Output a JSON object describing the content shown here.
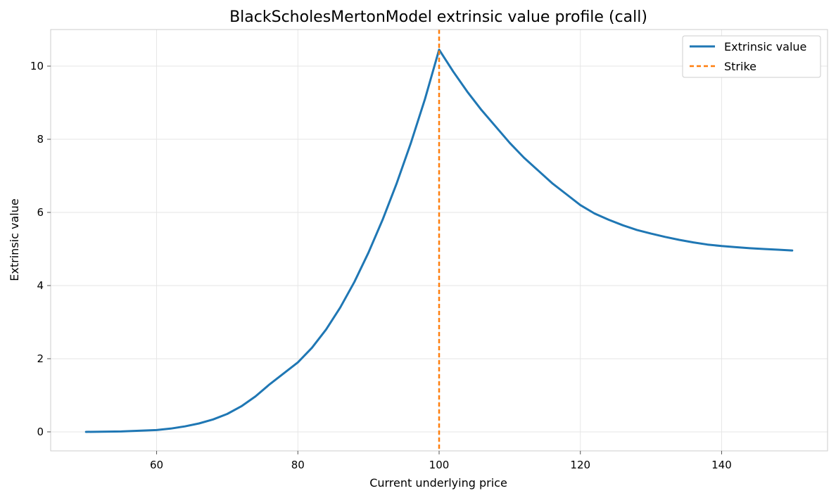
{
  "chart_data": {
    "type": "line",
    "title": "BlackScholesMertonModel extrinsic value profile (call)",
    "xlabel": "Current underlying price",
    "ylabel": "Extrinsic value",
    "xlim": [
      45,
      155
    ],
    "ylim": [
      -0.52,
      11.0
    ],
    "x_ticks": [
      60,
      80,
      100,
      120,
      140
    ],
    "y_ticks": [
      0,
      2,
      4,
      6,
      8,
      10
    ],
    "grid": true,
    "legend_position": "top-right",
    "series": [
      {
        "name": "Extrinsic value",
        "color": "#1f77b4",
        "style": "solid",
        "x": [
          50,
          55,
          60,
          62,
          64,
          66,
          68,
          70,
          72,
          74,
          76,
          78,
          80,
          82,
          84,
          86,
          88,
          90,
          92,
          94,
          96,
          98,
          100,
          102,
          104,
          106,
          108,
          110,
          112,
          114,
          116,
          118,
          120,
          122,
          124,
          126,
          128,
          130,
          132,
          134,
          136,
          138,
          140,
          142,
          144,
          146,
          148,
          150
        ],
        "y": [
          0.0,
          0.01,
          0.05,
          0.09,
          0.15,
          0.23,
          0.34,
          0.49,
          0.7,
          0.97,
          1.3,
          1.6,
          1.9,
          2.3,
          2.8,
          3.4,
          4.1,
          4.9,
          5.8,
          6.8,
          7.9,
          9.1,
          10.45,
          9.85,
          9.3,
          8.8,
          8.35,
          7.9,
          7.5,
          7.15,
          6.8,
          6.5,
          6.2,
          5.97,
          5.8,
          5.65,
          5.52,
          5.42,
          5.33,
          5.25,
          5.18,
          5.12,
          5.08,
          5.05,
          5.02,
          5.0,
          4.98,
          4.96
        ]
      }
    ],
    "vlines": [
      {
        "name": "Strike",
        "x": 100,
        "color": "#ff7f0e",
        "style": "dashed"
      }
    ]
  }
}
